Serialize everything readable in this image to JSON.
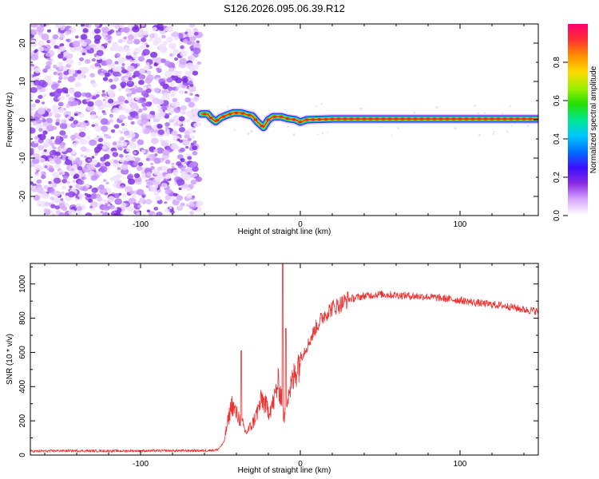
{
  "title": "S126.2026.095.06.39.R12",
  "colors": {
    "snr_line": "#ee3333",
    "frame": "#000000",
    "background": "#ffffff"
  },
  "chart_data": [
    {
      "type": "heatmap",
      "name": "spectrogram",
      "xlabel": "Height of straight line (km)",
      "ylabel": "Frequency (Hz)",
      "xlim": [
        -169,
        149
      ],
      "ylim": [
        -25,
        25
      ],
      "x_ticks": [
        -100,
        0,
        100
      ],
      "x_tick_labels": [
        "-100",
        "0",
        "100"
      ],
      "y_ticks": [
        -20,
        -10,
        0,
        10,
        20
      ],
      "y_tick_labels": [
        "-20",
        "-10",
        "0",
        "10",
        "20"
      ],
      "noise_region_x": [
        -169,
        -63
      ],
      "signal_track": [
        {
          "x": -62,
          "f": 1.5
        },
        {
          "x": -58,
          "f": 1.5
        },
        {
          "x": -56,
          "f": 0.5
        },
        {
          "x": -53,
          "f": -0.5
        },
        {
          "x": -50,
          "f": 0.5
        },
        {
          "x": -46,
          "f": 1.2
        },
        {
          "x": -42,
          "f": 1.8
        },
        {
          "x": -37,
          "f": 1.8
        },
        {
          "x": -33,
          "f": 1.3
        },
        {
          "x": -30,
          "f": 1.0
        },
        {
          "x": -27,
          "f": -0.5
        },
        {
          "x": -23,
          "f": -2.0
        },
        {
          "x": -20,
          "f": 0.0
        },
        {
          "x": -17,
          "f": 0.8
        },
        {
          "x": -12,
          "f": 0.8
        },
        {
          "x": -8,
          "f": 0.3
        },
        {
          "x": -3,
          "f": 0.0
        },
        {
          "x": 0,
          "f": -0.6
        },
        {
          "x": 4,
          "f": 0.0
        },
        {
          "x": 20,
          "f": 0.2
        },
        {
          "x": 149,
          "f": 0.2
        }
      ]
    },
    {
      "type": "line",
      "name": "snr",
      "xlabel": "Height of straight line (km)",
      "ylabel": "SNR (10 * v/v)",
      "xlim": [
        -169,
        149
      ],
      "ylim": [
        0,
        1120
      ],
      "x_ticks": [
        -100,
        0,
        100
      ],
      "x_tick_labels": [
        "-100",
        "0",
        "100"
      ],
      "y_ticks": [
        0,
        200,
        400,
        600,
        800,
        1000
      ],
      "y_tick_labels": [
        "0",
        "200",
        "400",
        "600",
        "800",
        "1000"
      ],
      "series": [
        {
          "name": "SNR",
          "x": [
            -169,
            -150,
            -120,
            -90,
            -60,
            -52,
            -48,
            -45,
            -43,
            -40,
            -37,
            -34,
            -30,
            -27,
            -24,
            -20,
            -17,
            -14,
            -12,
            -10,
            -8,
            -5,
            -2,
            0,
            5,
            10,
            15,
            20,
            25,
            30,
            40,
            50,
            60,
            70,
            80,
            90,
            100,
            110,
            120,
            130,
            140,
            149
          ],
          "y": [
            22,
            25,
            24,
            25,
            26,
            30,
            70,
            210,
            300,
            240,
            200,
            130,
            180,
            250,
            330,
            260,
            300,
            420,
            350,
            200,
            360,
            420,
            520,
            570,
            650,
            750,
            820,
            860,
            880,
            910,
            930,
            940,
            935,
            930,
            925,
            915,
            905,
            890,
            880,
            870,
            850,
            840
          ]
        }
      ],
      "peaks": [
        {
          "x": -37,
          "y": 610
        },
        {
          "x": -11,
          "y": 1120
        },
        {
          "x": -9,
          "y": 740
        }
      ]
    }
  ],
  "colorbar": {
    "label": "Normalized spectral amplitude",
    "range": [
      0,
      1
    ],
    "ticks": [
      0.0,
      0.2,
      0.4,
      0.6,
      0.8
    ],
    "tick_labels": [
      "0.0",
      "0.2",
      "0.4",
      "0.6",
      "0.8"
    ],
    "stops": [
      "#ffffff",
      "#d8a8ff",
      "#8b2be2",
      "#3b10ff",
      "#0070ff",
      "#00c8ff",
      "#00e890",
      "#28e000",
      "#a0f000",
      "#ffd800",
      "#ff9000",
      "#ff3030",
      "#ff0070"
    ]
  }
}
